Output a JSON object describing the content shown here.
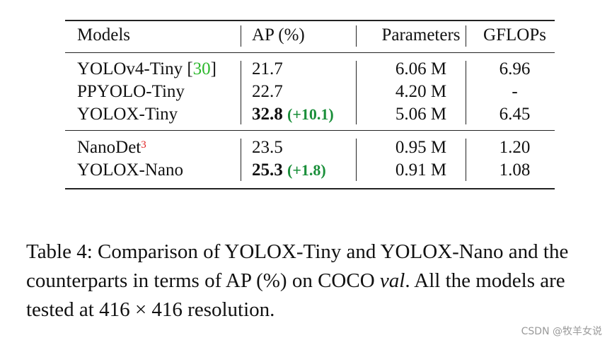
{
  "table": {
    "headers": {
      "model": "Models",
      "ap": "AP (%)",
      "params": "Parameters",
      "gflops": "GFLOPs"
    },
    "rows": [
      {
        "model": "YOLOv4-Tiny [",
        "cite": "30",
        "cite_close": "]",
        "ap": "21.7",
        "ap_delta": "",
        "params": "6.06 M",
        "gflops": "6.96"
      },
      {
        "model": "PPYOLO-Tiny",
        "ap": "22.7",
        "ap_delta": "",
        "params": "4.20 M",
        "gflops": "-"
      },
      {
        "model": "YOLOX-Tiny",
        "ap": "32.8",
        "ap_delta": "(+10.1)",
        "params": "5.06 M",
        "gflops": "6.45"
      },
      {
        "model": "NanoDet",
        "footnote": "3",
        "ap": "23.5",
        "ap_delta": "",
        "params": "0.95 M",
        "gflops": "1.20"
      },
      {
        "model": "YOLOX-Nano",
        "ap": "25.3",
        "ap_delta": "(+1.8)",
        "params": "0.91 M",
        "gflops": "1.08"
      }
    ]
  },
  "caption": {
    "label": "Table 4:",
    "text_a": " Comparison of YOLOX-Tiny and YOLOX-Nano and the counterparts in terms of AP (%) on COCO ",
    "text_italic": "val",
    "text_b": ". All the models are tested at 416 × 416 resolution."
  },
  "watermark": "CSDN @牧羊女说",
  "colors": {
    "delta": "#1a8f3a",
    "citation": "#2db82d",
    "footnote": "#e02020"
  }
}
